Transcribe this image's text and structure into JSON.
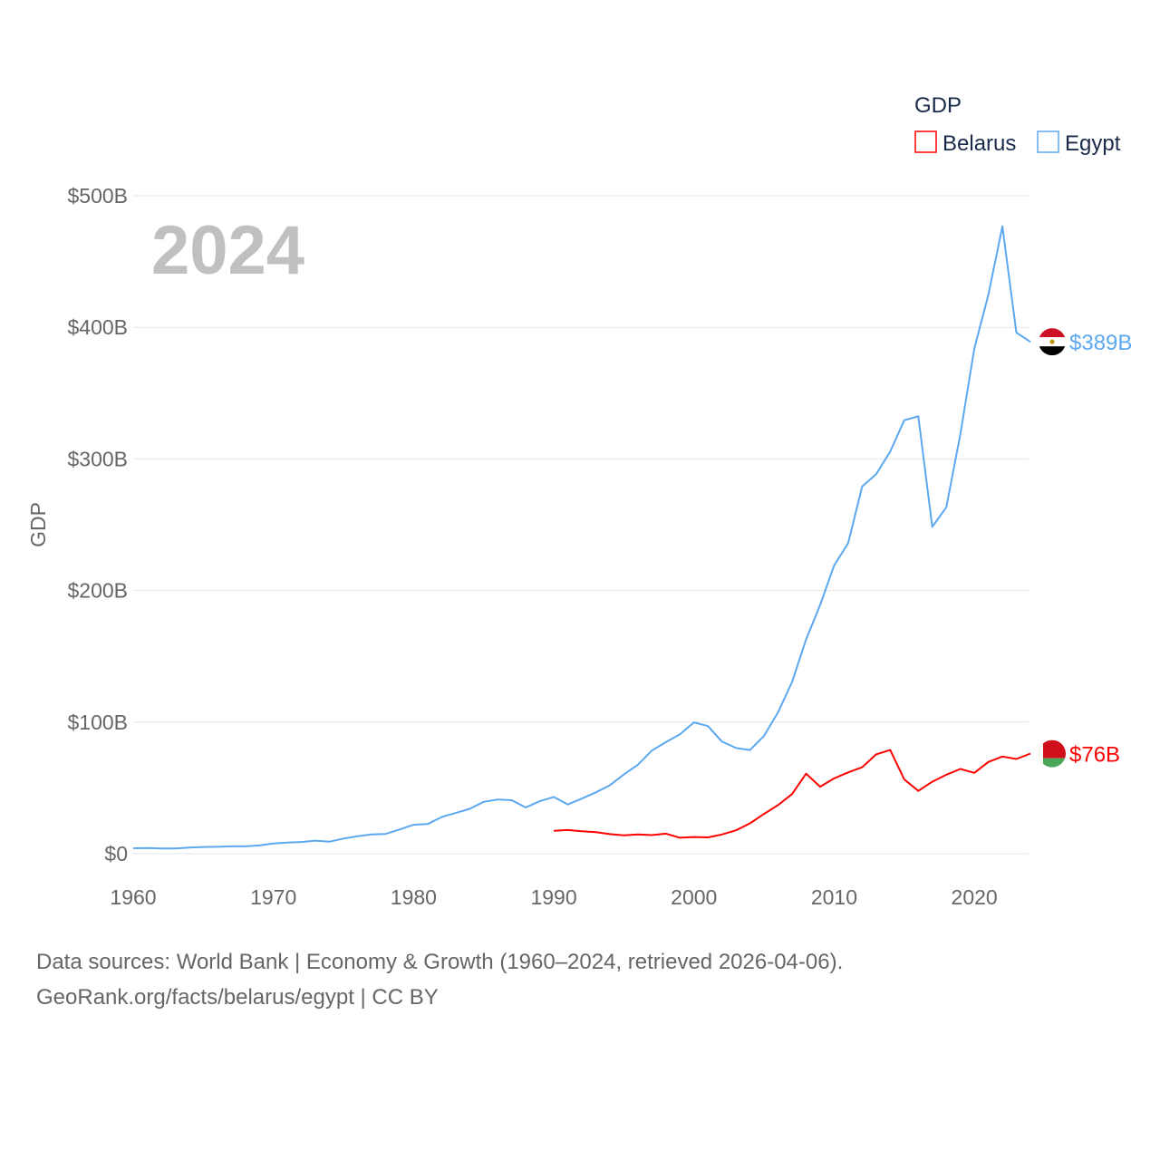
{
  "chart_data": {
    "type": "line",
    "title": "",
    "year_label": "2024",
    "ylabel": "GDP",
    "xlabel": "",
    "xlim": [
      1960,
      2024
    ],
    "ylim": [
      0,
      500
    ],
    "x_ticks": [
      "1960",
      "1970",
      "1980",
      "1990",
      "2000",
      "2010",
      "2020"
    ],
    "y_ticks": [
      "$0",
      "$100B",
      "$200B",
      "$300B",
      "$400B",
      "$500B"
    ],
    "grid": true,
    "legend": {
      "title": "GDP",
      "position": "top-right",
      "entries": [
        "Belarus",
        "Egypt"
      ]
    },
    "series": [
      {
        "name": "Belarus",
        "color": "#ff0000",
        "end_label": "$76B",
        "start_year": 1990,
        "values": [
          17.4,
          18.0,
          17.0,
          16.3,
          14.9,
          14.0,
          14.7,
          14.1,
          15.2,
          12.1,
          12.7,
          12.4,
          14.6,
          17.8,
          23.1,
          30.2,
          37.0,
          45.3,
          60.8,
          50.9,
          57.2,
          61.8,
          65.7,
          75.5,
          78.8,
          56.5,
          47.7,
          54.7,
          60.0,
          64.4,
          61.4,
          69.7,
          73.8,
          72.0,
          76.0
        ]
      },
      {
        "name": "Egypt",
        "color": "#5ca8f0",
        "end_label": "$389B",
        "start_year": 1960,
        "values": [
          4.1,
          4.3,
          4.0,
          4.0,
          4.6,
          5.1,
          5.2,
          5.6,
          5.6,
          6.3,
          7.7,
          8.4,
          8.9,
          9.9,
          9.1,
          11.5,
          13.3,
          14.6,
          15.0,
          18.4,
          22.0,
          22.5,
          27.8,
          30.9,
          34.1,
          39.4,
          41.2,
          40.6,
          35.1,
          39.9,
          43.1,
          37.4,
          41.9,
          46.6,
          51.9,
          60.2,
          67.6,
          78.4,
          84.8,
          90.7,
          99.8,
          97.0,
          85.1,
          80.3,
          78.8,
          89.6,
          107.5,
          130.5,
          162.8,
          189.1,
          219.0,
          236.0,
          279.1,
          288.4,
          305.6,
          329.4,
          332.4,
          248.4,
          263.2,
          318.7,
          383.8,
          424.7,
          476.7,
          396.0,
          389.0
        ]
      }
    ]
  },
  "source": {
    "line1": "Data sources: World Bank | Economy & Growth (1960–2024, retrieved 2026-04-06).",
    "line2": "GeoRank.org/facts/belarus/egypt | CC BY"
  }
}
